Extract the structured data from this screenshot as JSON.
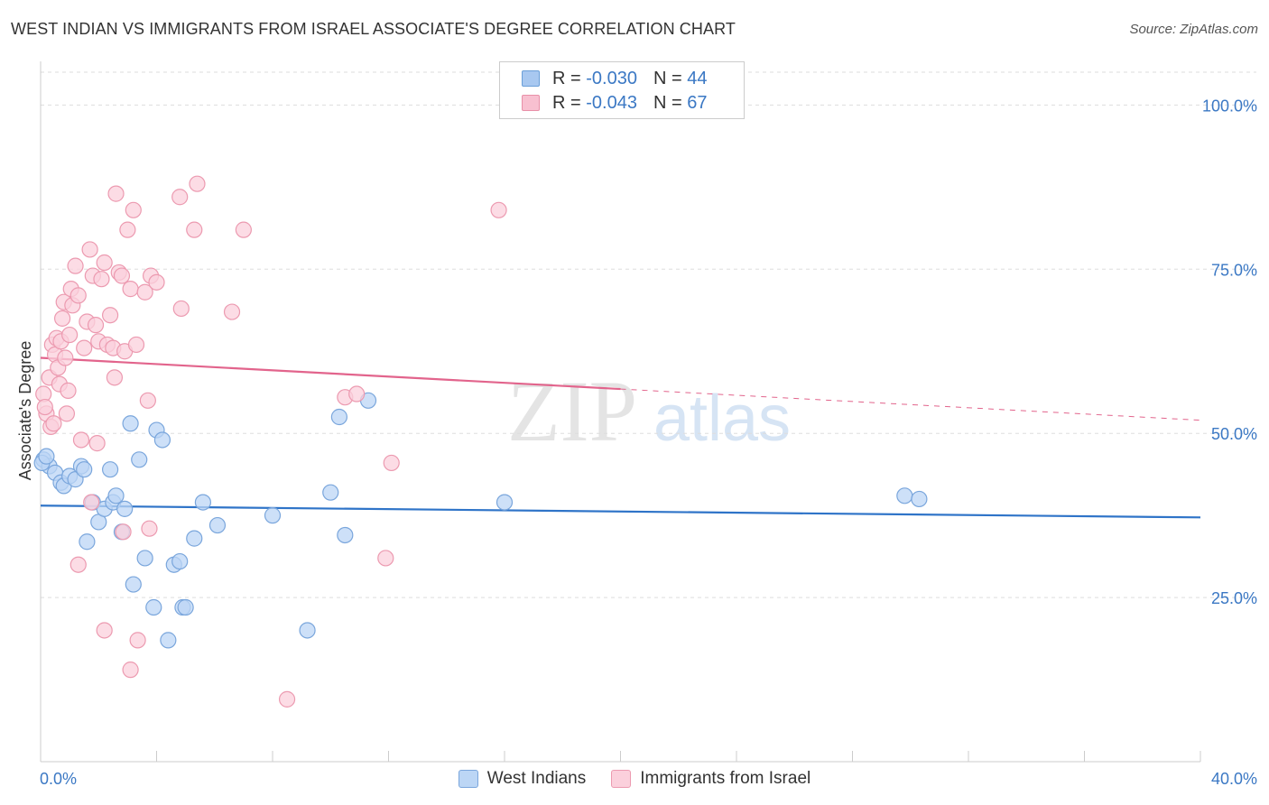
{
  "title": "WEST INDIAN VS IMMIGRANTS FROM ISRAEL ASSOCIATE'S DEGREE CORRELATION CHART",
  "source": "Source: ZipAtlas.com",
  "watermark": {
    "zip": "ZIP",
    "atlas": "atlas"
  },
  "legend_top": {
    "rows": [
      {
        "r_label": "R =",
        "r_value": "-0.030",
        "n_label": "N =",
        "n_value": "44",
        "color": "#a8c8f0",
        "border": "#6a9fd8"
      },
      {
        "r_label": "R =",
        "r_value": "-0.043",
        "n_label": "N =",
        "n_value": "67",
        "color": "#f8c0d0",
        "border": "#e890a8"
      }
    ]
  },
  "legend_bottom": [
    {
      "label": "West Indians",
      "color": "#bcd6f5",
      "border": "#7aa6dc"
    },
    {
      "label": "Immigrants from Israel",
      "color": "#fbd0dc",
      "border": "#ec9ab0"
    }
  ],
  "chart_data": {
    "type": "scatter",
    "title": "WEST INDIAN VS IMMIGRANTS FROM ISRAEL ASSOCIATE'S DEGREE CORRELATION CHART",
    "xlabel": "",
    "ylabel": "Associate's Degree",
    "xlim": [
      0,
      40
    ],
    "ylim": [
      0,
      105
    ],
    "x_tick_labels": {
      "left": "0.0%",
      "right": "40.0%"
    },
    "y_ticks": [
      100,
      75,
      50,
      25
    ],
    "y_tick_labels": [
      "100.0%",
      "75.0%",
      "50.0%",
      "25.0%"
    ],
    "grid": true,
    "series": [
      {
        "name": "West Indians",
        "color": "#7aa6dc",
        "fill": "#bcd6f5",
        "line_color": "#2f74c8",
        "trend": {
          "x0": 0,
          "y0": 39.0,
          "x1": 40,
          "y1": 37.2,
          "solid_until": 40
        },
        "points": [
          [
            0.1,
            46.0
          ],
          [
            0.3,
            45.0
          ],
          [
            0.5,
            44.0
          ],
          [
            0.7,
            42.5
          ],
          [
            0.8,
            42.0
          ],
          [
            1.0,
            43.5
          ],
          [
            1.2,
            43.0
          ],
          [
            1.4,
            45.0
          ],
          [
            1.5,
            44.5
          ],
          [
            1.6,
            33.5
          ],
          [
            1.8,
            39.5
          ],
          [
            2.0,
            36.5
          ],
          [
            2.2,
            38.5
          ],
          [
            2.4,
            44.5
          ],
          [
            2.5,
            39.5
          ],
          [
            2.6,
            40.5
          ],
          [
            2.8,
            35.0
          ],
          [
            2.9,
            38.5
          ],
          [
            3.1,
            51.5
          ],
          [
            3.2,
            27.0
          ],
          [
            3.4,
            46.0
          ],
          [
            3.6,
            31.0
          ],
          [
            3.9,
            23.5
          ],
          [
            4.0,
            50.5
          ],
          [
            4.2,
            49.0
          ],
          [
            4.4,
            18.5
          ],
          [
            4.6,
            30.0
          ],
          [
            4.8,
            30.5
          ],
          [
            4.9,
            23.5
          ],
          [
            5.0,
            23.5
          ],
          [
            5.3,
            34.0
          ],
          [
            5.6,
            39.5
          ],
          [
            6.1,
            36.0
          ],
          [
            8.0,
            37.5
          ],
          [
            9.2,
            20.0
          ],
          [
            10.0,
            41.0
          ],
          [
            10.3,
            52.5
          ],
          [
            10.5,
            34.5
          ],
          [
            11.3,
            55.0
          ],
          [
            16.0,
            39.5
          ],
          [
            29.8,
            40.5
          ],
          [
            30.3,
            40.0
          ],
          [
            0.05,
            45.5
          ],
          [
            0.2,
            46.5
          ]
        ]
      },
      {
        "name": "Immigrants from Israel",
        "color": "#ec9ab0",
        "fill": "#fbd0dc",
        "line_color": "#e2648c",
        "trend": {
          "x0": 0,
          "y0": 61.5,
          "x1": 40,
          "y1": 52.0,
          "solid_until": 20
        },
        "points": [
          [
            0.1,
            56.0
          ],
          [
            0.2,
            53.0
          ],
          [
            0.3,
            58.5
          ],
          [
            0.35,
            51.0
          ],
          [
            0.4,
            63.5
          ],
          [
            0.5,
            62.0
          ],
          [
            0.55,
            64.5
          ],
          [
            0.6,
            60.0
          ],
          [
            0.65,
            57.5
          ],
          [
            0.7,
            64.0
          ],
          [
            0.75,
            67.5
          ],
          [
            0.8,
            70.0
          ],
          [
            0.85,
            61.5
          ],
          [
            0.9,
            53.0
          ],
          [
            0.95,
            56.5
          ],
          [
            1.0,
            65.0
          ],
          [
            1.05,
            72.0
          ],
          [
            1.1,
            69.5
          ],
          [
            1.2,
            75.5
          ],
          [
            1.3,
            71.0
          ],
          [
            1.4,
            49.0
          ],
          [
            1.5,
            63.0
          ],
          [
            1.6,
            67.0
          ],
          [
            1.7,
            78.0
          ],
          [
            1.75,
            39.5
          ],
          [
            1.8,
            74.0
          ],
          [
            1.9,
            66.5
          ],
          [
            1.95,
            48.5
          ],
          [
            2.0,
            64.0
          ],
          [
            2.1,
            73.5
          ],
          [
            2.2,
            76.0
          ],
          [
            2.3,
            63.5
          ],
          [
            2.4,
            68.0
          ],
          [
            2.5,
            63.0
          ],
          [
            2.55,
            58.5
          ],
          [
            2.6,
            86.5
          ],
          [
            2.7,
            74.5
          ],
          [
            2.8,
            74.0
          ],
          [
            2.85,
            35.0
          ],
          [
            2.9,
            62.5
          ],
          [
            3.0,
            81.0
          ],
          [
            3.1,
            72.0
          ],
          [
            3.2,
            84.0
          ],
          [
            3.3,
            63.5
          ],
          [
            3.35,
            18.5
          ],
          [
            3.6,
            71.5
          ],
          [
            3.7,
            55.0
          ],
          [
            3.75,
            35.5
          ],
          [
            3.8,
            74.0
          ],
          [
            4.0,
            73.0
          ],
          [
            4.8,
            86.0
          ],
          [
            4.85,
            69.0
          ],
          [
            5.3,
            81.0
          ],
          [
            5.4,
            88.0
          ],
          [
            6.6,
            68.5
          ],
          [
            7.0,
            81.0
          ],
          [
            8.5,
            9.5
          ],
          [
            10.5,
            55.5
          ],
          [
            10.9,
            56.0
          ],
          [
            12.1,
            45.5
          ],
          [
            11.9,
            31.0
          ],
          [
            15.8,
            84.0
          ],
          [
            1.3,
            30.0
          ],
          [
            2.2,
            20.0
          ],
          [
            3.1,
            14.0
          ],
          [
            0.15,
            54.0
          ],
          [
            0.45,
            51.5
          ]
        ]
      }
    ]
  }
}
